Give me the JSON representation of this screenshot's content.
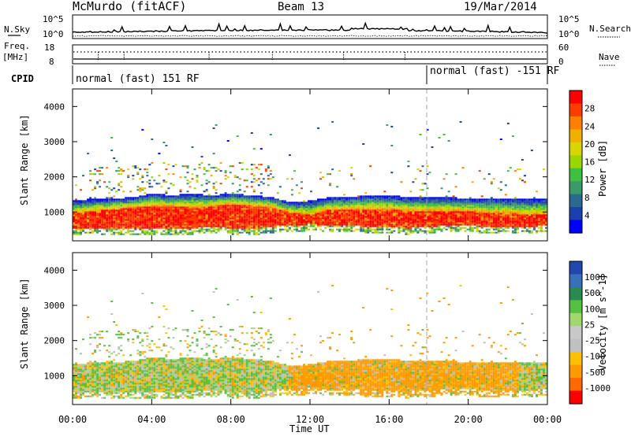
{
  "header": {
    "station": "McMurdo (fitACF)",
    "beam": "Beam 13",
    "date": "19/Mar/2014"
  },
  "noise_panel": {
    "left_label": "N.Sky",
    "right_label": "N.Search",
    "left_ticks": [
      "10^5",
      "10^0"
    ],
    "right_ticks": [
      "10^5",
      "10^0"
    ]
  },
  "freq_panel": {
    "left_label": "Freq.",
    "left_unit": "[MHz]",
    "left_ticks": [
      "18",
      "8"
    ],
    "right_label": "Nave",
    "right_ticks": [
      "60",
      "0"
    ]
  },
  "cpid_panel": {
    "label": "CPID",
    "segments": [
      {
        "text": "normal (fast) 151 RF",
        "start_hour": 0
      },
      {
        "text": "normal (fast) -151 RF",
        "start_hour": 18
      }
    ]
  },
  "chart_data": [
    {
      "type": "heatmap",
      "name": "power",
      "ylabel": "Slant Range [km]",
      "ylim": [
        180,
        4500
      ],
      "yticks": [
        1000,
        2000,
        3000,
        4000
      ],
      "colorbar_label": "Power [dB]",
      "colorbar_ticks": [
        "28",
        "24",
        "20",
        "16",
        "12",
        "8",
        "4"
      ],
      "colorbar_colors": [
        "#ff0000",
        "#ff3c00",
        "#ff7f00",
        "#f0b000",
        "#d6d600",
        "#9ad600",
        "#40c040",
        "#3a9a68",
        "#2a6a90",
        "#1a40b0",
        "#0000ff"
      ]
    },
    {
      "type": "heatmap",
      "name": "velocity",
      "ylabel": "Slant Range [km]",
      "ylim": [
        180,
        4500
      ],
      "yticks": [
        1000,
        2000,
        3000,
        4000
      ],
      "xlabel": "Time UT",
      "xticks": [
        "00:00",
        "04:00",
        "08:00",
        "12:00",
        "16:00",
        "20:00",
        "00:00"
      ],
      "colorbar_label": "Velocity [m s^-1]",
      "colorbar_ticks": [
        "1000",
        "500",
        "100",
        "25",
        "-25",
        "-100",
        "-500",
        "-1000"
      ],
      "colorbar_colors": [
        "#2048b0",
        "#3a70b8",
        "#2a8a50",
        "#56c040",
        "#a0d870",
        "#c8c8c8",
        "#c0c0c0",
        "#ffc000",
        "#ff9a00",
        "#ff6a00",
        "#ff0000"
      ]
    }
  ],
  "observations": {
    "hours": [
      0,
      24
    ],
    "power_core_km": [
      [
        0,
        500,
        950
      ],
      [
        1,
        500,
        1000
      ],
      [
        2,
        520,
        1050
      ],
      [
        3,
        500,
        1100
      ],
      [
        4,
        480,
        1150
      ],
      [
        5,
        500,
        1150
      ],
      [
        6,
        520,
        1100
      ],
      [
        7,
        540,
        1150
      ],
      [
        8,
        520,
        1200
      ],
      [
        9,
        500,
        1150
      ],
      [
        10,
        560,
        1100
      ],
      [
        11,
        600,
        950
      ],
      [
        12,
        620,
        900
      ],
      [
        13,
        600,
        1050
      ],
      [
        14,
        580,
        1050
      ],
      [
        15,
        560,
        1050
      ],
      [
        16,
        540,
        1050
      ],
      [
        17,
        520,
        1000
      ],
      [
        18,
        560,
        1000
      ],
      [
        19,
        600,
        1000
      ],
      [
        20,
        580,
        1000
      ],
      [
        21,
        560,
        950
      ],
      [
        22,
        540,
        950
      ],
      [
        23,
        560,
        900
      ],
      [
        24,
        580,
        900
      ]
    ],
    "outer_edge_km": [
      [
        0,
        1300
      ],
      [
        1,
        1350
      ],
      [
        2,
        1350
      ],
      [
        3,
        1400
      ],
      [
        4,
        1500
      ],
      [
        5,
        1450
      ],
      [
        6,
        1500
      ],
      [
        7,
        1450
      ],
      [
        8,
        1500
      ],
      [
        9,
        1450
      ],
      [
        10,
        1400
      ],
      [
        11,
        1250
      ],
      [
        12,
        1300
      ],
      [
        13,
        1400
      ],
      [
        14,
        1400
      ],
      [
        15,
        1450
      ],
      [
        16,
        1450
      ],
      [
        17,
        1400
      ],
      [
        18,
        1400
      ],
      [
        19,
        1400
      ],
      [
        20,
        1350
      ],
      [
        21,
        1350
      ],
      [
        22,
        1350
      ],
      [
        23,
        1350
      ],
      [
        24,
        1350
      ]
    ]
  }
}
